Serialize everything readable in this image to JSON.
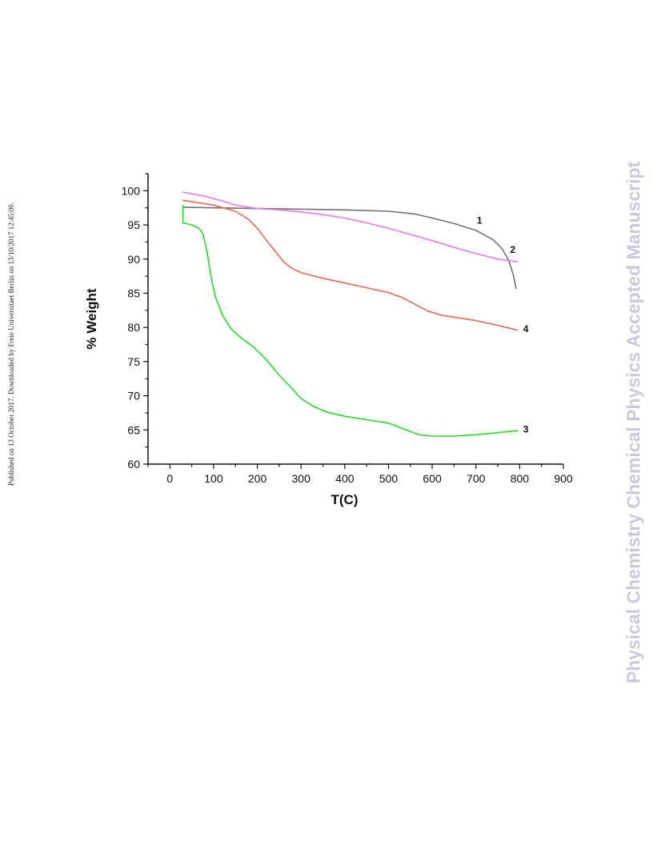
{
  "side_note": "Published on 13 October 2017. Downloaded by Freie Universitaet Berlin on 13/10/2017 12:45:00.",
  "watermark": "Physical Chemistry Chemical Physics Accepted Manuscript",
  "chart_data": {
    "type": "line",
    "xlabel": "T(C)",
    "ylabel": "% Weight",
    "xlim": [
      -50,
      900
    ],
    "ylim": [
      60,
      102.5
    ],
    "xticks": [
      0,
      100,
      200,
      300,
      400,
      500,
      600,
      700,
      800,
      900
    ],
    "yticks": [
      60,
      65,
      70,
      75,
      80,
      85,
      90,
      95,
      100
    ],
    "x_minor_step": 50,
    "y_minor_step": 2.5,
    "grid": false,
    "legend": "none",
    "series": [
      {
        "label": "1",
        "color": "#707070",
        "label_at": [
          702,
          95.2
        ],
        "points": [
          [
            30,
            97.6
          ],
          [
            100,
            97.5
          ],
          [
            200,
            97.4
          ],
          [
            300,
            97.3
          ],
          [
            400,
            97.2
          ],
          [
            500,
            97.0
          ],
          [
            560,
            96.6
          ],
          [
            600,
            96.0
          ],
          [
            650,
            95.2
          ],
          [
            700,
            94.2
          ],
          [
            740,
            92.8
          ],
          [
            760,
            91.5
          ],
          [
            775,
            89.8
          ],
          [
            785,
            87.8
          ],
          [
            792,
            85.7
          ]
        ]
      },
      {
        "label": "2",
        "color": "#e879e8",
        "label_at": [
          778,
          90.9
        ],
        "points": [
          [
            30,
            99.8
          ],
          [
            80,
            99.2
          ],
          [
            120,
            98.5
          ],
          [
            150,
            97.9
          ],
          [
            200,
            97.4
          ],
          [
            250,
            97.2
          ],
          [
            300,
            96.9
          ],
          [
            350,
            96.5
          ],
          [
            400,
            96.0
          ],
          [
            450,
            95.3
          ],
          [
            500,
            94.5
          ],
          [
            550,
            93.6
          ],
          [
            600,
            92.7
          ],
          [
            650,
            91.7
          ],
          [
            700,
            90.8
          ],
          [
            750,
            90.0
          ],
          [
            795,
            89.6
          ]
        ]
      },
      {
        "label": "3",
        "color": "#22dd22",
        "label_at": [
          808,
          64.6
        ],
        "points": [
          [
            30,
            97.8
          ],
          [
            30,
            95.3
          ],
          [
            50,
            95.0
          ],
          [
            65,
            94.6
          ],
          [
            75,
            93.8
          ],
          [
            85,
            91.0
          ],
          [
            95,
            87.0
          ],
          [
            105,
            84.3
          ],
          [
            120,
            81.8
          ],
          [
            140,
            79.8
          ],
          [
            160,
            78.6
          ],
          [
            190,
            77.2
          ],
          [
            220,
            75.3
          ],
          [
            250,
            73.0
          ],
          [
            280,
            71.0
          ],
          [
            300,
            69.6
          ],
          [
            330,
            68.4
          ],
          [
            360,
            67.6
          ],
          [
            400,
            67.0
          ],
          [
            450,
            66.5
          ],
          [
            500,
            66.0
          ],
          [
            540,
            65.0
          ],
          [
            570,
            64.3
          ],
          [
            600,
            64.1
          ],
          [
            650,
            64.1
          ],
          [
            700,
            64.3
          ],
          [
            750,
            64.6
          ],
          [
            795,
            64.9
          ]
        ]
      },
      {
        "label": "4",
        "color": "#ee6655",
        "label_at": [
          808,
          79.3
        ],
        "points": [
          [
            30,
            98.6
          ],
          [
            60,
            98.3
          ],
          [
            100,
            97.9
          ],
          [
            150,
            97.0
          ],
          [
            180,
            95.8
          ],
          [
            200,
            94.5
          ],
          [
            220,
            92.8
          ],
          [
            240,
            91.2
          ],
          [
            260,
            89.6
          ],
          [
            280,
            88.6
          ],
          [
            300,
            88.0
          ],
          [
            350,
            87.2
          ],
          [
            400,
            86.5
          ],
          [
            450,
            85.8
          ],
          [
            500,
            85.1
          ],
          [
            530,
            84.4
          ],
          [
            560,
            83.4
          ],
          [
            590,
            82.4
          ],
          [
            620,
            81.8
          ],
          [
            650,
            81.5
          ],
          [
            700,
            81.0
          ],
          [
            750,
            80.3
          ],
          [
            795,
            79.6
          ]
        ]
      }
    ]
  }
}
